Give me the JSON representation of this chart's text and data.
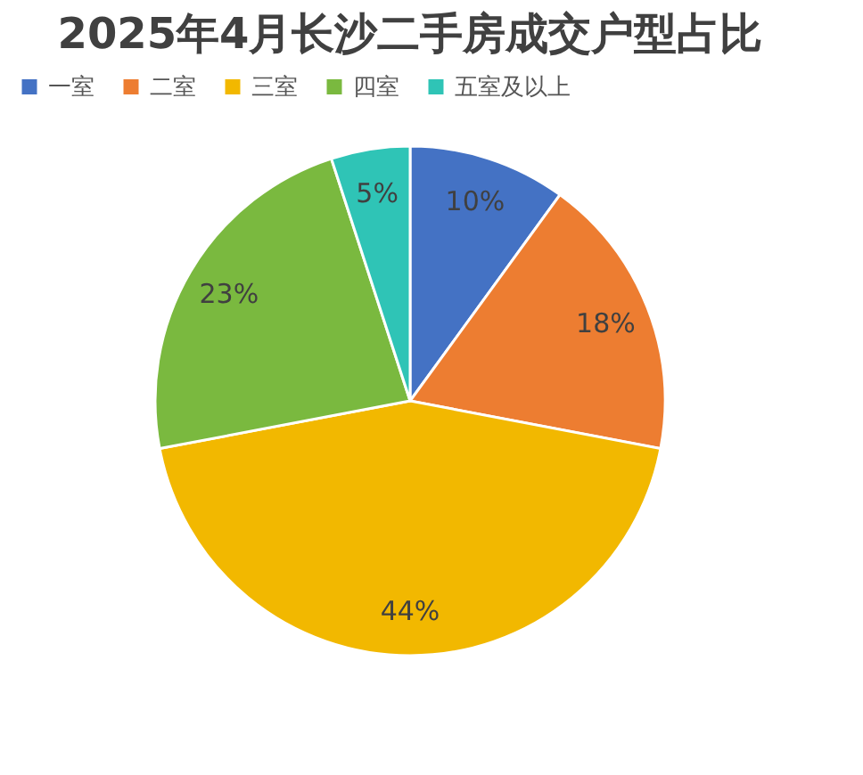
{
  "chart_data": {
    "type": "pie",
    "title": "2025年4月长沙二手房成交户型占比",
    "categories": [
      "一室",
      "二室",
      "三室",
      "四室",
      "五室及以上"
    ],
    "values": [
      10,
      18,
      44,
      23,
      5
    ],
    "colors": [
      "#4472c4",
      "#ed7d31",
      "#f2b800",
      "#7ab93f",
      "#2fc4b6"
    ],
    "value_labels": [
      "10%",
      "18%",
      "44%",
      "23%",
      "5%"
    ],
    "legend": "top"
  }
}
